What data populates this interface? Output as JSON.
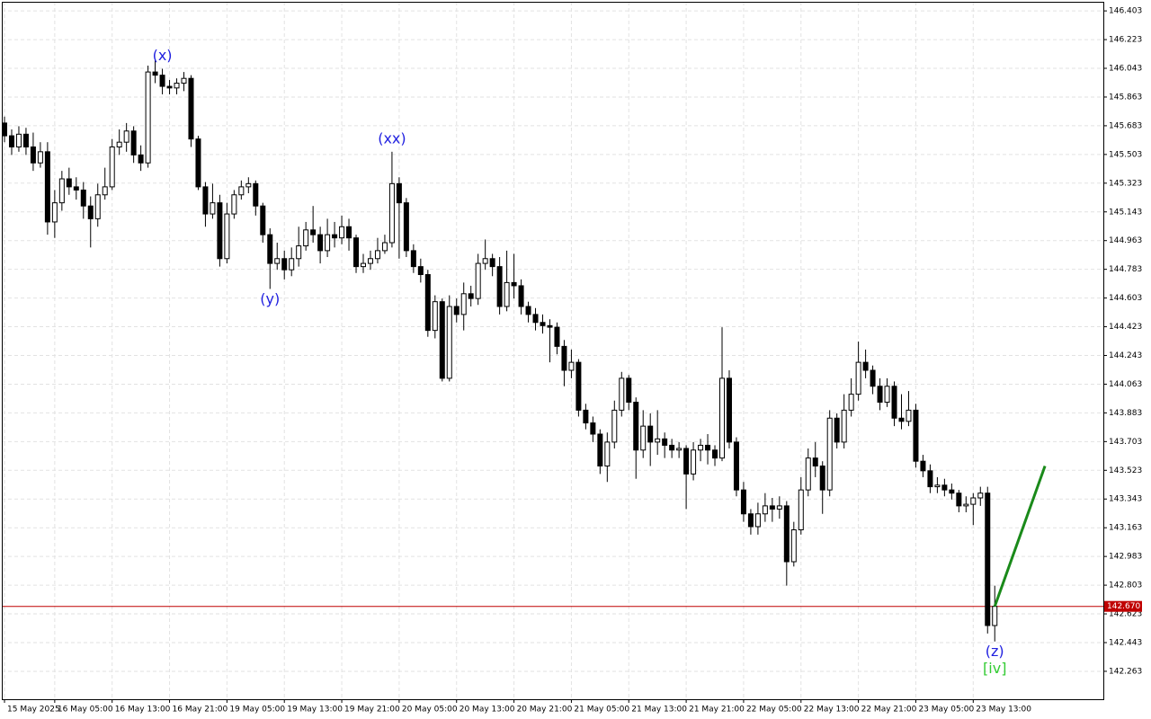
{
  "chart_data": {
    "type": "candlestick",
    "categories": [
      "15 May 2025",
      null,
      null,
      null,
      null,
      null,
      null,
      "16 May 05:00",
      null,
      null,
      null,
      null,
      null,
      null,
      null,
      "16 May 13:00",
      null,
      null,
      null,
      null,
      null,
      null,
      null,
      "16 May 21:00",
      null,
      null,
      null,
      null,
      null,
      null,
      null,
      "19 May 05:00",
      null,
      null,
      null,
      null,
      null,
      null,
      null,
      "19 May 13:00",
      null,
      null,
      null,
      null,
      null,
      null,
      null,
      "19 May 21:00",
      null,
      null,
      null,
      null,
      null,
      null,
      null,
      "20 May 05:00",
      null,
      null,
      null,
      null,
      null,
      null,
      null,
      "20 May 13:00",
      null,
      null,
      null,
      null,
      null,
      null,
      null,
      "20 May 21:00",
      null,
      null,
      null,
      null,
      null,
      null,
      null,
      "21 May 05:00",
      null,
      null,
      null,
      null,
      null,
      null,
      null,
      "21 May 13:00",
      null,
      null,
      null,
      null,
      null,
      null,
      null,
      "21 May 21:00",
      null,
      null,
      null,
      null,
      null,
      null,
      null,
      "22 May 05:00",
      null,
      null,
      null,
      null,
      null,
      null,
      null,
      "22 May 13:00",
      null,
      null,
      null,
      null,
      null,
      null,
      null,
      "22 May 21:00",
      null,
      null,
      null,
      null,
      null,
      null,
      null,
      "23 May 05:00",
      null,
      null,
      null,
      null,
      null,
      null,
      null,
      "23 May 13:00",
      null,
      null,
      null
    ],
    "open": [
      145.7,
      145.62,
      145.55,
      145.63,
      145.55,
      145.45,
      145.52,
      145.08,
      145.2,
      145.35,
      145.3,
      145.28,
      145.18,
      145.1,
      145.25,
      145.3,
      145.55,
      145.58,
      145.65,
      145.5,
      145.45,
      146.02,
      146.0,
      145.93,
      145.92,
      145.95,
      145.98,
      145.6,
      145.3,
      145.13,
      145.2,
      144.85,
      145.13,
      145.25,
      145.3,
      145.32,
      145.18,
      145.0,
      144.82,
      144.85,
      144.78,
      144.85,
      144.93,
      145.03,
      145.0,
      144.9,
      145.0,
      144.98,
      145.05,
      144.98,
      144.8,
      144.82,
      144.85,
      144.9,
      144.95,
      145.32,
      145.2,
      144.9,
      144.8,
      144.75,
      144.4,
      144.58,
      144.1,
      144.55,
      144.5,
      144.63,
      144.6,
      144.82,
      144.85,
      144.8,
      144.55,
      144.7,
      144.68,
      144.55,
      144.5,
      144.45,
      144.43,
      144.42,
      144.3,
      144.15,
      144.2,
      143.9,
      143.82,
      143.75,
      143.55,
      143.7,
      143.9,
      144.1,
      143.95,
      143.65,
      143.8,
      143.7,
      143.72,
      143.68,
      143.65,
      143.66,
      143.5,
      143.65,
      143.68,
      143.65,
      143.6,
      144.1,
      143.7,
      143.4,
      143.25,
      143.17,
      143.25,
      143.3,
      143.28,
      143.3,
      142.95,
      143.15,
      143.4,
      143.6,
      143.55,
      143.4,
      143.85,
      143.7,
      143.9,
      144.0,
      144.2,
      144.15,
      144.05,
      143.95,
      144.05,
      143.85,
      143.83,
      143.9,
      143.58,
      143.52,
      143.42,
      143.43,
      143.4,
      143.38,
      143.3,
      143.31,
      143.35,
      143.38,
      142.55
    ],
    "high": [
      145.74,
      145.66,
      145.68,
      145.67,
      145.64,
      145.58,
      145.58,
      145.28,
      145.4,
      145.42,
      145.36,
      145.33,
      145.24,
      145.32,
      145.42,
      145.6,
      145.66,
      145.7,
      145.68,
      145.56,
      146.06,
      146.1,
      146.04,
      145.97,
      145.98,
      146.02,
      146.0,
      145.62,
      145.33,
      145.32,
      145.25,
      145.2,
      145.28,
      145.34,
      145.36,
      145.34,
      145.2,
      145.04,
      144.95,
      144.9,
      144.92,
      145.05,
      145.08,
      145.18,
      145.05,
      145.1,
      145.08,
      145.12,
      145.1,
      145.0,
      144.88,
      144.9,
      144.98,
      145.0,
      145.52,
      145.36,
      145.23,
      144.94,
      144.85,
      144.78,
      144.62,
      144.6,
      144.62,
      144.6,
      144.7,
      144.68,
      144.88,
      144.97,
      144.88,
      144.86,
      144.9,
      144.88,
      144.72,
      144.58,
      144.54,
      144.5,
      144.47,
      144.45,
      144.34,
      144.28,
      144.22,
      143.94,
      143.86,
      143.78,
      143.76,
      143.96,
      144.14,
      144.12,
      143.98,
      143.9,
      143.88,
      143.9,
      143.76,
      143.72,
      143.7,
      143.68,
      143.7,
      143.72,
      143.75,
      143.68,
      144.42,
      144.15,
      143.73,
      143.45,
      143.28,
      143.32,
      143.38,
      143.35,
      143.36,
      143.33,
      143.2,
      143.48,
      143.66,
      143.7,
      143.58,
      143.9,
      143.88,
      144.0,
      144.1,
      144.33,
      144.28,
      144.18,
      144.1,
      144.1,
      144.08,
      144.0,
      144.02,
      143.94,
      143.62,
      143.56,
      143.48,
      143.47,
      143.44,
      143.4,
      143.36,
      143.38,
      143.42,
      143.42,
      142.8
    ],
    "low": [
      145.58,
      145.5,
      145.52,
      145.5,
      145.4,
      145.42,
      145.0,
      144.98,
      145.15,
      145.25,
      145.22,
      145.1,
      144.92,
      145.05,
      145.22,
      145.28,
      145.5,
      145.52,
      145.45,
      145.4,
      145.42,
      145.95,
      145.88,
      145.88,
      145.88,
      145.9,
      145.55,
      145.28,
      145.05,
      145.1,
      144.8,
      144.82,
      145.1,
      145.22,
      145.26,
      145.12,
      144.95,
      144.66,
      144.78,
      144.72,
      144.74,
      144.8,
      144.9,
      144.95,
      144.82,
      144.86,
      144.92,
      144.94,
      144.9,
      144.76,
      144.76,
      144.78,
      144.82,
      144.88,
      144.92,
      144.85,
      144.86,
      144.76,
      144.7,
      144.36,
      144.35,
      144.08,
      144.08,
      144.45,
      144.4,
      144.55,
      144.56,
      144.78,
      144.74,
      144.5,
      144.52,
      144.6,
      144.5,
      144.45,
      144.4,
      144.38,
      144.2,
      144.25,
      144.05,
      144.1,
      143.86,
      143.78,
      143.7,
      143.5,
      143.45,
      143.66,
      143.86,
      143.9,
      143.47,
      143.6,
      143.55,
      143.62,
      143.6,
      143.6,
      143.6,
      143.28,
      143.46,
      143.58,
      143.56,
      143.55,
      143.58,
      143.66,
      143.36,
      143.2,
      143.12,
      143.12,
      143.2,
      143.2,
      143.22,
      142.8,
      142.92,
      143.12,
      143.36,
      143.48,
      143.25,
      143.36,
      143.66,
      143.66,
      143.86,
      143.96,
      144.1,
      144.0,
      143.9,
      143.92,
      143.8,
      143.78,
      143.8,
      143.54,
      143.48,
      143.38,
      143.38,
      143.36,
      143.34,
      143.26,
      143.26,
      143.18,
      143.3,
      142.5,
      142.45
    ],
    "close": [
      145.62,
      145.55,
      145.63,
      145.55,
      145.45,
      145.52,
      145.08,
      145.2,
      145.35,
      145.3,
      145.28,
      145.18,
      145.1,
      145.25,
      145.3,
      145.55,
      145.58,
      145.65,
      145.5,
      145.45,
      146.02,
      146.0,
      145.93,
      145.92,
      145.95,
      145.98,
      145.6,
      145.3,
      145.13,
      145.2,
      144.85,
      145.13,
      145.25,
      145.3,
      145.32,
      145.18,
      145.0,
      144.82,
      144.85,
      144.78,
      144.85,
      144.93,
      145.03,
      145.0,
      144.9,
      145.0,
      144.98,
      145.05,
      144.98,
      144.8,
      144.82,
      144.85,
      144.9,
      144.95,
      145.32,
      145.2,
      144.9,
      144.8,
      144.75,
      144.4,
      144.58,
      144.1,
      144.55,
      144.5,
      144.63,
      144.6,
      144.82,
      144.85,
      144.8,
      144.55,
      144.7,
      144.68,
      144.55,
      144.5,
      144.45,
      144.43,
      144.42,
      144.3,
      144.15,
      144.2,
      143.9,
      143.82,
      143.75,
      143.55,
      143.7,
      143.9,
      144.1,
      143.95,
      143.65,
      143.8,
      143.7,
      143.72,
      143.68,
      143.65,
      143.66,
      143.5,
      143.65,
      143.68,
      143.65,
      143.6,
      144.1,
      143.7,
      143.4,
      143.25,
      143.17,
      143.25,
      143.3,
      143.28,
      143.3,
      142.95,
      143.15,
      143.4,
      143.6,
      143.55,
      143.4,
      143.85,
      143.7,
      143.9,
      144.0,
      144.2,
      144.15,
      144.05,
      143.95,
      144.05,
      143.85,
      143.83,
      143.9,
      143.58,
      143.52,
      143.42,
      143.43,
      143.4,
      143.38,
      143.3,
      143.31,
      143.35,
      143.38,
      142.55,
      142.67
    ],
    "up_color": "#ffffff",
    "down_color": "#000000",
    "ylim": [
      142.088,
      146.46
    ],
    "yticks": [
      142.263,
      142.443,
      142.623,
      142.803,
      142.983,
      143.163,
      143.343,
      143.523,
      143.703,
      143.883,
      144.063,
      144.243,
      144.423,
      144.603,
      144.783,
      144.963,
      145.143,
      145.323,
      145.503,
      145.683,
      145.863,
      146.043,
      146.223,
      146.403
    ],
    "grid": true,
    "current_price": {
      "value": 142.67,
      "label": "142.670",
      "color": "#c00000"
    },
    "projection": {
      "color": "#1a8a1a",
      "values": [
        142.67,
        143.55
      ]
    },
    "annotations": [
      {
        "text": "(x)",
        "color": "#2020e0"
      },
      {
        "text": "(xx)",
        "color": "#2020e0"
      },
      {
        "text": "(y)",
        "color": "#2020e0"
      },
      {
        "text": "(z)",
        "color": "#2020e0"
      },
      {
        "text": "[iv]",
        "color": "#33cc33"
      }
    ]
  }
}
